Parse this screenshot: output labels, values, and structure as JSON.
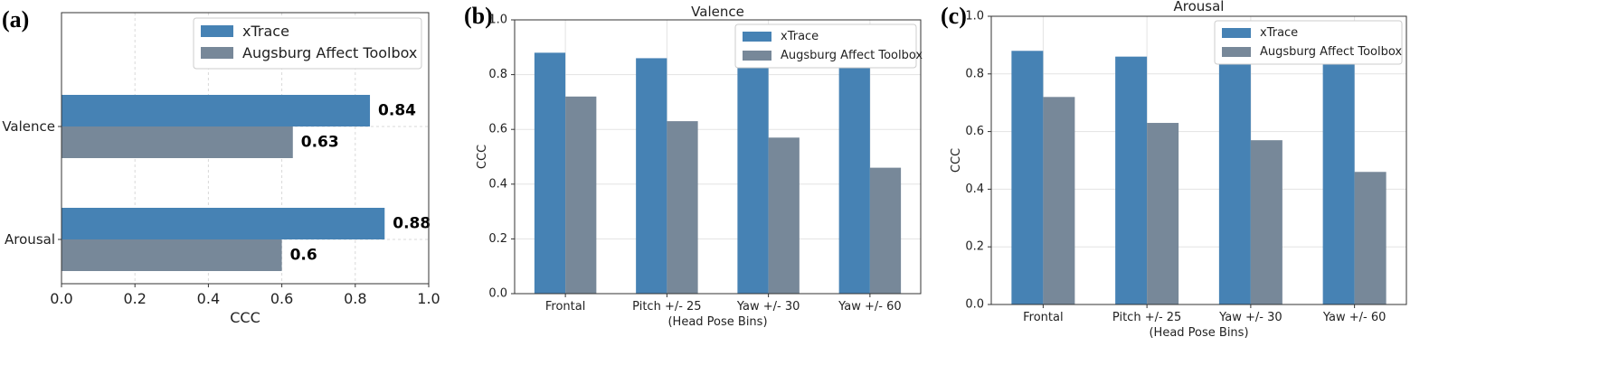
{
  "chart_data": [
    {
      "panel_label": "(a)",
      "type": "bar",
      "orientation": "horizontal",
      "title": "",
      "categories": [
        "Valence",
        "Arousal"
      ],
      "series": [
        {
          "name": "xTrace",
          "values": [
            0.84,
            0.88
          ],
          "color": "#4682b4"
        },
        {
          "name": "Augsburg Affect Toolbox",
          "values": [
            0.63,
            0.6
          ],
          "color": "#778899"
        }
      ],
      "data_labels": [
        [
          "0.84",
          "0.88"
        ],
        [
          "0.63",
          "0.6"
        ]
      ],
      "xlabel": "CCC",
      "ylabel": "",
      "xlim": [
        0,
        1.0
      ],
      "xticks": [
        "0.0",
        "0.2",
        "0.4",
        "0.6",
        "0.8",
        "1.0"
      ],
      "grid": true,
      "legend": "top-right"
    },
    {
      "panel_label": "(b)",
      "type": "bar",
      "title": "Valence",
      "categories": [
        "Frontal",
        "Pitch +/- 25",
        "Yaw +/- 30",
        "Yaw +/- 60"
      ],
      "series": [
        {
          "name": "xTrace",
          "values": [
            0.88,
            0.86,
            0.89,
            0.89
          ],
          "color": "#4682b4"
        },
        {
          "name": "Augsburg Affect Toolbox",
          "values": [
            0.72,
            0.63,
            0.57,
            0.46
          ],
          "color": "#778899"
        }
      ],
      "xlabel": "(Head Pose Bins)",
      "ylabel": "CCC",
      "ylim": [
        0,
        1.0
      ],
      "yticks": [
        "0.0",
        "0.2",
        "0.4",
        "0.6",
        "0.8",
        "1.0"
      ],
      "grid": true,
      "legend": "top-right"
    },
    {
      "panel_label": "(c)",
      "type": "bar",
      "title": "Arousal",
      "categories": [
        "Frontal",
        "Pitch +/- 25",
        "Yaw +/- 30",
        "Yaw +/- 60"
      ],
      "series": [
        {
          "name": "xTrace",
          "values": [
            0.88,
            0.86,
            0.89,
            0.89
          ],
          "color": "#4682b4"
        },
        {
          "name": "Augsburg Affect Toolbox",
          "values": [
            0.72,
            0.63,
            0.57,
            0.46
          ],
          "color": "#778899"
        }
      ],
      "xlabel": "(Head Pose Bins)",
      "ylabel": "CCC",
      "ylim": [
        0,
        1.0
      ],
      "yticks": [
        "0.0",
        "0.2",
        "0.4",
        "0.6",
        "0.8",
        "1.0"
      ],
      "grid": true,
      "legend": "top-right"
    }
  ]
}
